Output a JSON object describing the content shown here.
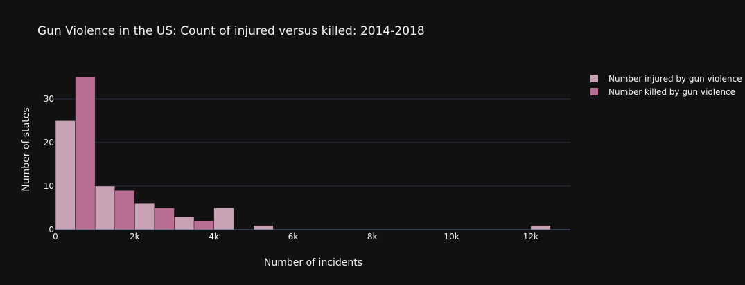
{
  "chart_data": {
    "type": "bar",
    "title": "Gun Violence in the US: Count of injured versus killed: 2014-2018",
    "xlabel": "Number of incidents",
    "ylabel": "Number of states",
    "xlim": [
      0,
      13000
    ],
    "ylim": [
      0,
      36.8
    ],
    "x_ticks": [
      {
        "value": 0,
        "label": "0"
      },
      {
        "value": 2000,
        "label": "2k"
      },
      {
        "value": 4000,
        "label": "4k"
      },
      {
        "value": 6000,
        "label": "6k"
      },
      {
        "value": 8000,
        "label": "8k"
      },
      {
        "value": 10000,
        "label": "10k"
      },
      {
        "value": 12000,
        "label": "12k"
      }
    ],
    "y_ticks": [
      {
        "value": 0,
        "label": "0"
      },
      {
        "value": 10,
        "label": "10"
      },
      {
        "value": 20,
        "label": "20"
      },
      {
        "value": 30,
        "label": "30"
      }
    ],
    "bin_size": 1000,
    "grid": true,
    "legend_position": "top-right",
    "series": [
      {
        "name": "Number injured by gun violence",
        "color": "#c8a1b4",
        "bins": [
          {
            "start": 0,
            "count": 25
          },
          {
            "start": 1000,
            "count": 10
          },
          {
            "start": 2000,
            "count": 6
          },
          {
            "start": 3000,
            "count": 3
          },
          {
            "start": 4000,
            "count": 5
          },
          {
            "start": 5000,
            "count": 1
          },
          {
            "start": 12000,
            "count": 1
          }
        ]
      },
      {
        "name": "Number killed by gun violence",
        "color": "#b86e93",
        "bins": [
          {
            "start": 0,
            "count": 35
          },
          {
            "start": 1000,
            "count": 9
          },
          {
            "start": 2000,
            "count": 5
          },
          {
            "start": 3000,
            "count": 2
          }
        ]
      }
    ]
  }
}
